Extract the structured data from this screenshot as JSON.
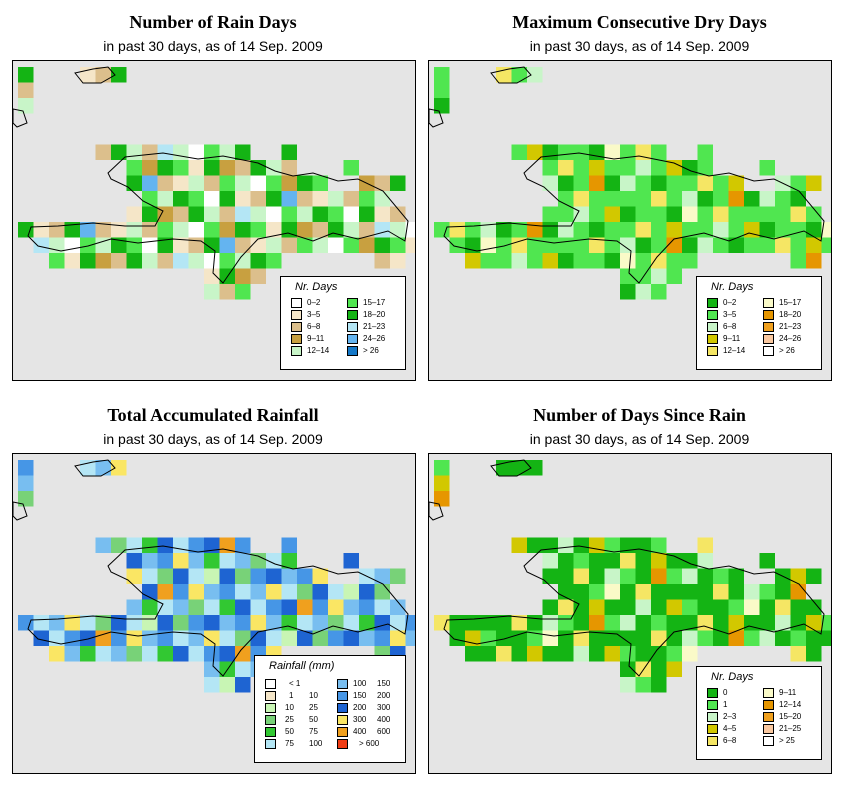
{
  "panels": [
    {
      "title": "Number of Rain Days",
      "subtitle": "in past 30 days, as of  14 Sep. 2009",
      "legend_title": "Nr. Days",
      "legend": [
        {
          "label": "0–2",
          "color": "#ffffff"
        },
        {
          "label": "3–5",
          "color": "#f5e6c8"
        },
        {
          "label": "6–8",
          "color": "#dcbf8c"
        },
        {
          "label": "9–11",
          "color": "#c8a040"
        },
        {
          "label": "12–14",
          "color": "#c8f5c8"
        },
        {
          "label": "15–17",
          "color": "#50e650"
        },
        {
          "label": "18–20",
          "color": "#14b414"
        },
        {
          "label": "21–23",
          "color": "#b4e6f5"
        },
        {
          "label": "24–26",
          "color": "#64b4f0"
        },
        {
          "label": "> 26",
          "color": "#1478c8"
        }
      ]
    },
    {
      "title": "Maximum Consecutive Dry Days",
      "subtitle": "in past 30 days, as of  14 Sep. 2009",
      "legend_title": "Nr. Days",
      "legend": [
        {
          "label": "0–2",
          "color": "#14b414"
        },
        {
          "label": "3–5",
          "color": "#50e650"
        },
        {
          "label": "6–8",
          "color": "#c8f5c8"
        },
        {
          "label": "9–11",
          "color": "#d2c800"
        },
        {
          "label": "12–14",
          "color": "#f5e664"
        },
        {
          "label": "15–17",
          "color": "#fafac8"
        },
        {
          "label": "18–20",
          "color": "#e69600"
        },
        {
          "label": "21–23",
          "color": "#f0a01e"
        },
        {
          "label": "24–26",
          "color": "#fac8a0"
        },
        {
          "label": "> 26",
          "color": "#ffffff"
        }
      ]
    },
    {
      "title": "Total Accumulated Rainfall",
      "subtitle": "in past 30 days, as of  14 Sep. 2009",
      "legend_title": "Rainfall (mm)",
      "legend": [
        {
          "label": "< 1",
          "color": "#ffffff"
        },
        {
          "label": "1",
          "label2": "10",
          "color": "#f5e6c8"
        },
        {
          "label": "10",
          "label2": "25",
          "color": "#c8f5b4"
        },
        {
          "label": "25",
          "label2": "50",
          "color": "#78d278"
        },
        {
          "label": "50",
          "label2": "75",
          "color": "#32c832"
        },
        {
          "label": "75",
          "label2": "100",
          "color": "#b4e6f5"
        },
        {
          "label": "100",
          "label2": "150",
          "color": "#78bef0"
        },
        {
          "label": "150",
          "label2": "200",
          "color": "#4696e6"
        },
        {
          "label": "200",
          "label2": "300",
          "color": "#1e64d2"
        },
        {
          "label": "300",
          "label2": "400",
          "color": "#fae664"
        },
        {
          "label": "400",
          "label2": "600",
          "color": "#f0a01e"
        },
        {
          "label": "> 600",
          "color": "#f03c14"
        }
      ]
    },
    {
      "title": "Number of Days Since Rain",
      "subtitle": "in past 30 days, as of  14 Sep. 2009",
      "legend_title": "Nr. Days",
      "legend": [
        {
          "label": "0",
          "color": "#14b414"
        },
        {
          "label": "1",
          "color": "#50e650"
        },
        {
          "label": "2–3",
          "color": "#c8f5c8"
        },
        {
          "label": "4–5",
          "color": "#d2c800"
        },
        {
          "label": "6–8",
          "color": "#f5e664"
        },
        {
          "label": "9–11",
          "color": "#fafac8"
        },
        {
          "label": "12–14",
          "color": "#e69600"
        },
        {
          "label": "15–20",
          "color": "#f0a01e"
        },
        {
          "label": "21–25",
          "color": "#fac8a0"
        },
        {
          "label": "> 25",
          "color": "#ffffff"
        }
      ]
    }
  ],
  "map_background": "#e5e5e5"
}
